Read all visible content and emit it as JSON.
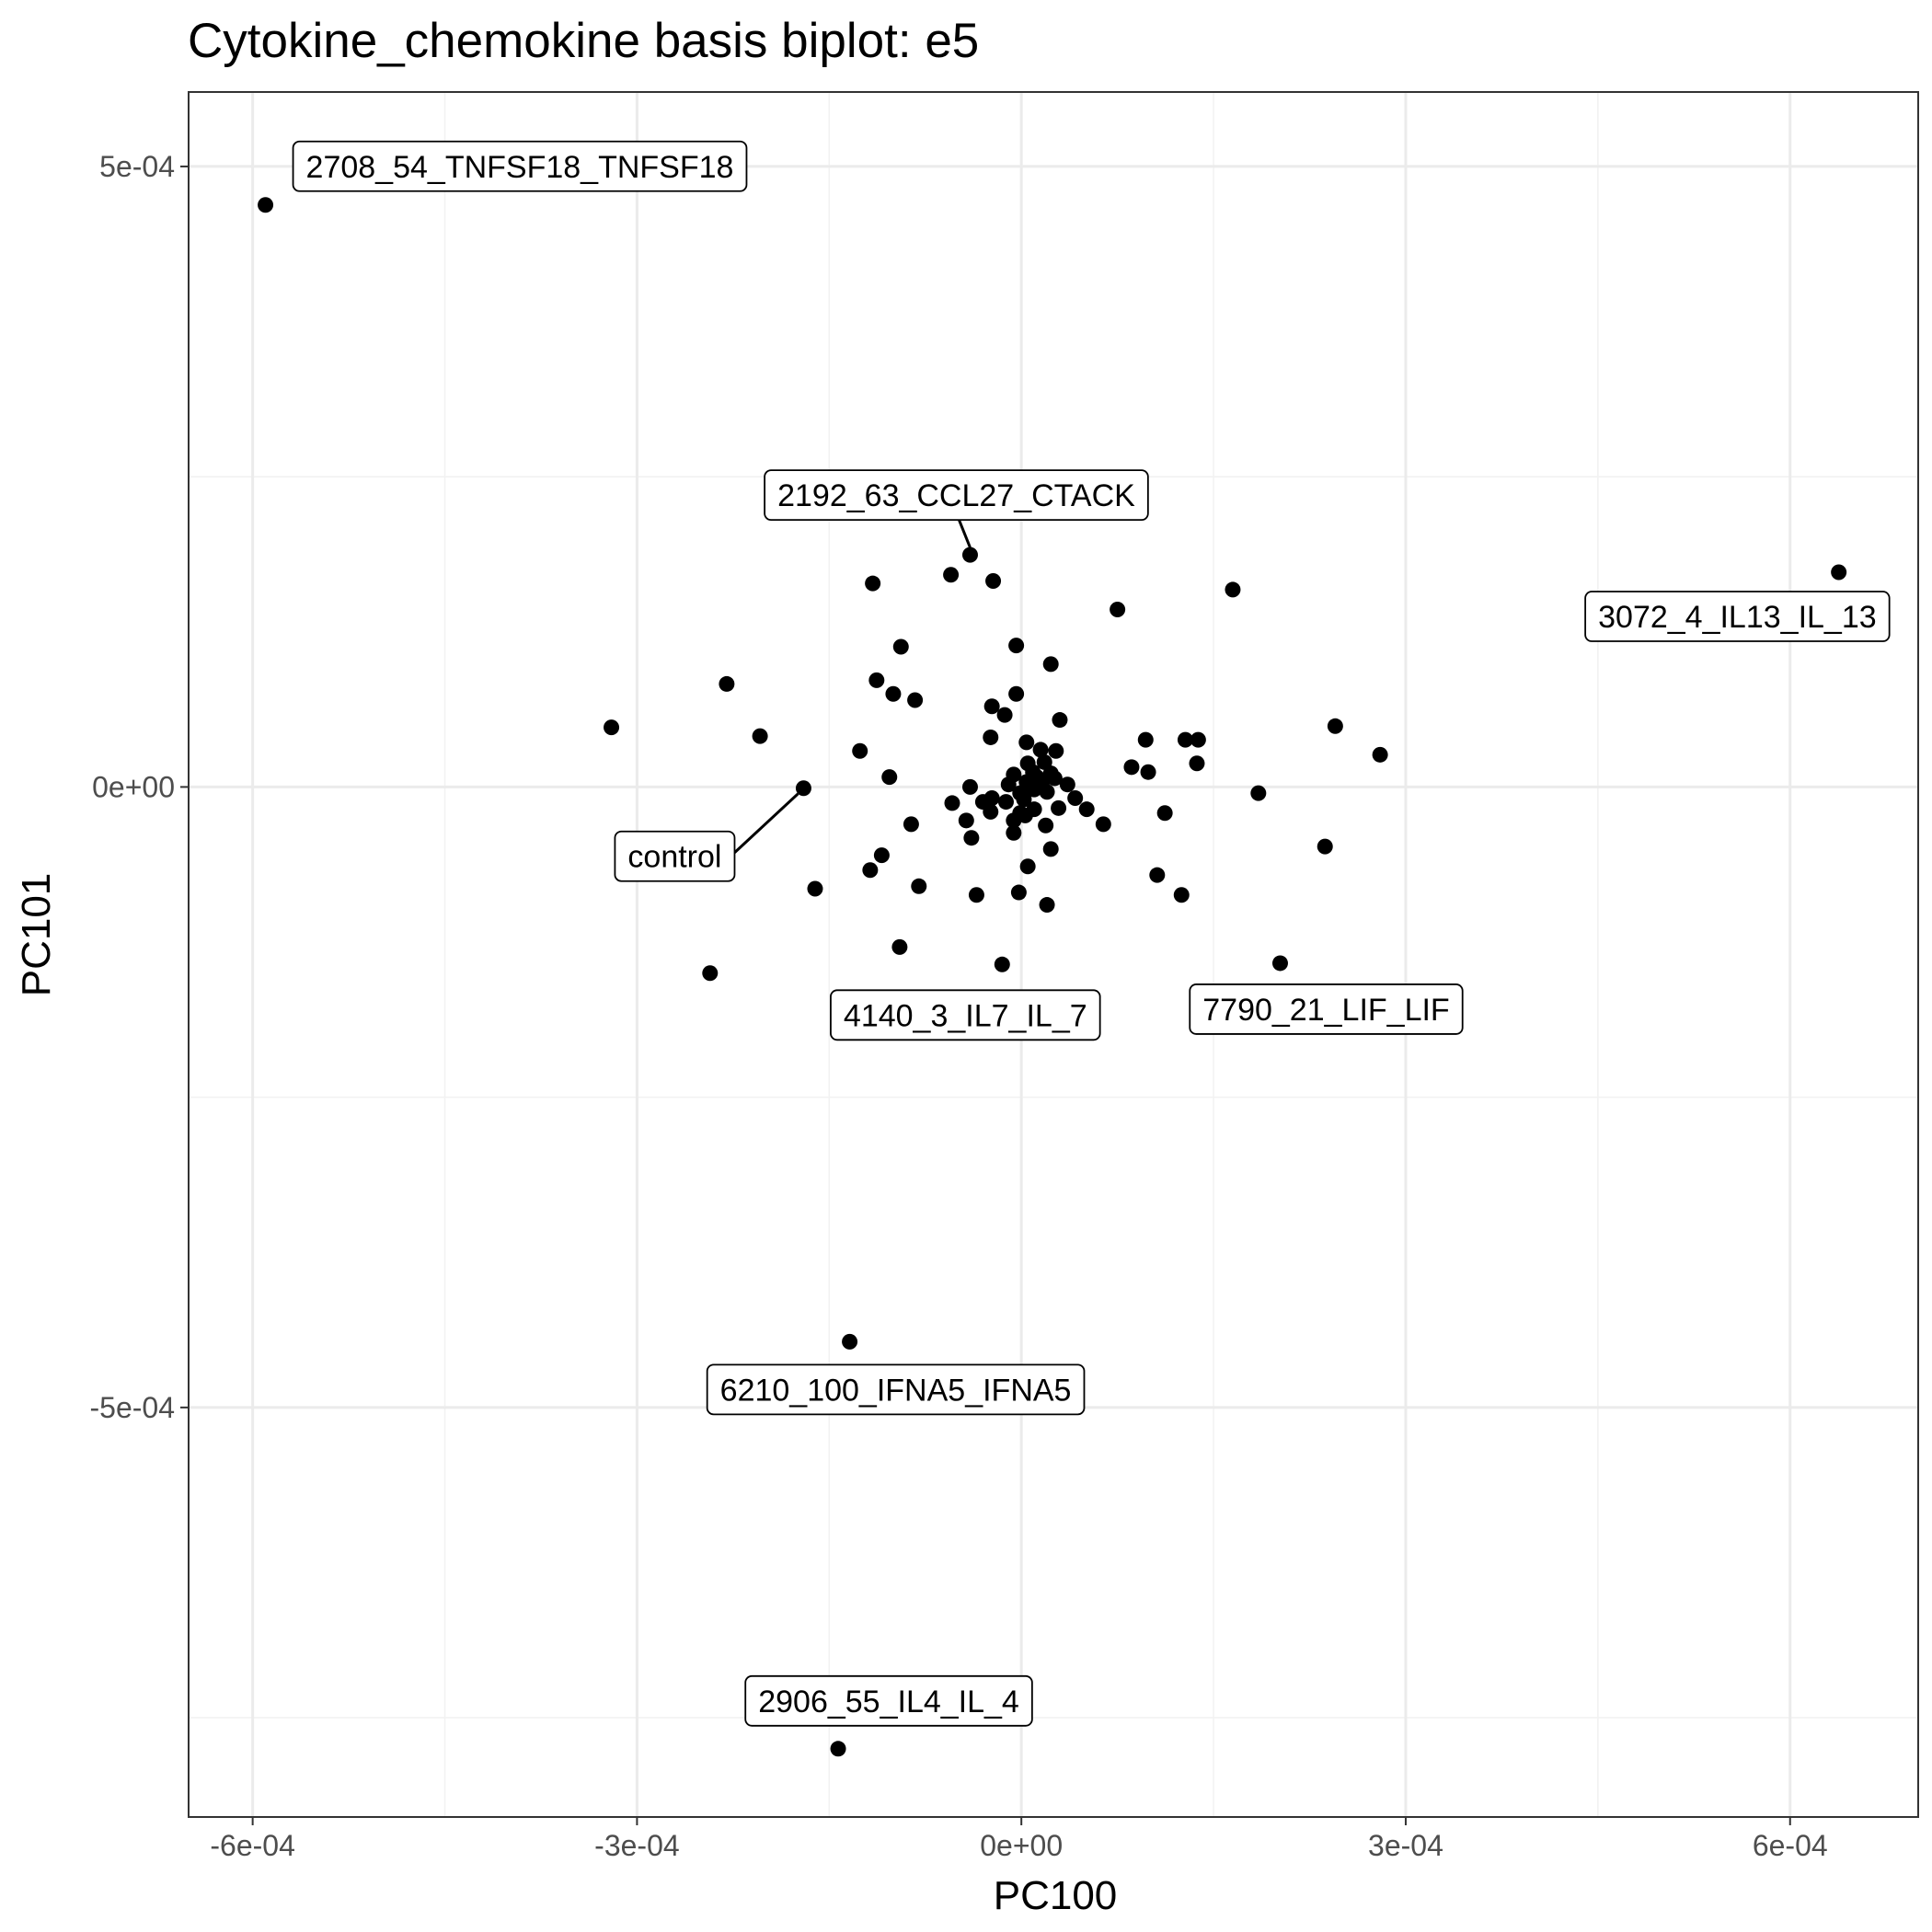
{
  "chart_data": {
    "type": "scatter",
    "title": "Cytokine_chemokine basis biplot: e5",
    "xlabel": "PC100",
    "ylabel": "PC101",
    "xlim": [
      -0.00065,
      0.0007
    ],
    "ylim": [
      -0.00083,
      0.00056
    ],
    "x_ticks": [
      {
        "value": -0.0006,
        "label": "-6e-04"
      },
      {
        "value": -0.0003,
        "label": "-3e-04"
      },
      {
        "value": 0.0,
        "label": "0e+00"
      },
      {
        "value": 0.0003,
        "label": "3e-04"
      },
      {
        "value": 0.0006,
        "label": "6e-04"
      }
    ],
    "y_ticks": [
      {
        "value": 0.0005,
        "label": "5e-04"
      },
      {
        "value": 0.0,
        "label": "0e+00"
      },
      {
        "value": -0.0005,
        "label": "-5e-04"
      }
    ],
    "grid": true,
    "point_color": "#000000",
    "labeled_points": [
      {
        "name": "2708_54_TNFSF18_TNFSF18",
        "x": -0.00059,
        "y": 0.000469,
        "label_anchor": "right-above"
      },
      {
        "name": "2192_63_CCL27_CTACK",
        "x": -4e-05,
        "y": 0.000187,
        "label_anchor": "above"
      },
      {
        "name": "3072_4_IL13_IL_13",
        "x": 0.000638,
        "y": 0.000173,
        "label_anchor": "below-left"
      },
      {
        "name": "control",
        "x": -0.00017,
        "y": -1e-06,
        "label_anchor": "below-left"
      },
      {
        "name": "4140_3_IL7_IL_7",
        "x": -1.5e-05,
        "y": -0.000143,
        "label_anchor": "below"
      },
      {
        "name": "7790_21_LIF_LIF",
        "x": 0.000202,
        "y": -0.000142,
        "label_anchor": "below"
      },
      {
        "name": "6210_100_IFNA5_IFNA5",
        "x": -0.000134,
        "y": -0.000447,
        "label_anchor": "below"
      },
      {
        "name": "2906_55_IL4_IL_4",
        "x": -0.000143,
        "y": -0.000775,
        "label_anchor": "above"
      }
    ],
    "points": [
      [
        -5.5e-05,
        0.000171
      ],
      [
        -2.2e-05,
        0.000166
      ],
      [
        -0.000116,
        0.000164
      ],
      [
        0.000165,
        0.000159
      ],
      [
        7.5e-05,
        0.000143
      ],
      [
        -4e-06,
        0.000114
      ],
      [
        -9.4e-05,
        0.000113
      ],
      [
        2.3e-05,
        9.9e-05
      ],
      [
        -0.00023,
        8.3e-05
      ],
      [
        -0.000113,
        8.6e-05
      ],
      [
        -0.0001,
        7.5e-05
      ],
      [
        -8.3e-05,
        7e-05
      ],
      [
        -4e-06,
        7.5e-05
      ],
      [
        -2.3e-05,
        6.5e-05
      ],
      [
        -1.3e-05,
        5.8e-05
      ],
      [
        3e-05,
        5.4e-05
      ],
      [
        -0.00032,
        4.8e-05
      ],
      [
        0.000245,
        4.9e-05
      ],
      [
        -0.000204,
        4.1e-05
      ],
      [
        -2.4e-05,
        4e-05
      ],
      [
        4e-06,
        3.6e-05
      ],
      [
        9.7e-05,
        3.8e-05
      ],
      [
        0.000128,
        3.8e-05
      ],
      [
        0.000138,
        3.8e-05
      ],
      [
        0.00028,
        2.6e-05
      ],
      [
        -0.000126,
        2.9e-05
      ],
      [
        1.5e-05,
        3e-05
      ],
      [
        2.7e-05,
        2.9e-05
      ],
      [
        5e-06,
        1.9e-05
      ],
      [
        1.8e-05,
        2e-05
      ],
      [
        8.6e-05,
        1.6e-05
      ],
      [
        9.9e-05,
        1.2e-05
      ],
      [
        0.000137,
        1.9e-05
      ],
      [
        -0.000103,
        8e-06
      ],
      [
        -6e-06,
        1e-05
      ],
      [
        9e-06,
        1.2e-05
      ],
      [
        2.3e-05,
        1.1e-05
      ],
      [
        1.2e-05,
        8e-06
      ],
      [
        3.6e-05,
        2e-06
      ],
      [
        -4e-05,
        0.0
      ],
      [
        -1e-05,
        2e-06
      ],
      [
        4e-06,
        4e-06
      ],
      [
        1.6e-05,
        3e-06
      ],
      [
        2.6e-05,
        7e-06
      ],
      [
        -1e-06,
        -5e-06
      ],
      [
        1e-05,
        -2e-06
      ],
      [
        2e-05,
        -4e-06
      ],
      [
        4.2e-05,
        -9e-06
      ],
      [
        -2.3e-05,
        -9e-06
      ],
      [
        -1.2e-05,
        -1.2e-05
      ],
      [
        2e-06,
        -1e-05
      ],
      [
        -5.4e-05,
        -1.3e-05
      ],
      [
        -3e-05,
        -1.2e-05
      ],
      [
        -2.4e-05,
        -2e-05
      ],
      [
        -1e-06,
        -2.1e-05
      ],
      [
        1e-05,
        -1.8e-05
      ],
      [
        2.9e-05,
        -1.7e-05
      ],
      [
        5.1e-05,
        -1.8e-05
      ],
      [
        0.000112,
        -2.1e-05
      ],
      [
        0.000185,
        -5e-06
      ],
      [
        -4.3e-05,
        -2.7e-05
      ],
      [
        -8.6e-05,
        -3e-05
      ],
      [
        -6e-06,
        -2.7e-05
      ],
      [
        3e-06,
        -2.3e-05
      ],
      [
        1.9e-05,
        -3.1e-05
      ],
      [
        6.4e-05,
        -3e-05
      ],
      [
        -3.9e-05,
        -4.1e-05
      ],
      [
        -6e-06,
        -3.7e-05
      ],
      [
        2.3e-05,
        -5e-05
      ],
      [
        0.000237,
        -4.8e-05
      ],
      [
        -0.000109,
        -5.5e-05
      ],
      [
        -0.000118,
        -6.7e-05
      ],
      [
        5e-06,
        -6.4e-05
      ],
      [
        0.000106,
        -7.1e-05
      ],
      [
        -0.000161,
        -8.2e-05
      ],
      [
        -8e-05,
        -8e-05
      ],
      [
        -3.5e-05,
        -8.7e-05
      ],
      [
        -2e-06,
        -8.5e-05
      ],
      [
        2e-05,
        -9.5e-05
      ],
      [
        0.000125,
        -8.7e-05
      ],
      [
        -9.5e-05,
        -0.000129
      ],
      [
        -0.000243,
        -0.00015
      ]
    ]
  }
}
